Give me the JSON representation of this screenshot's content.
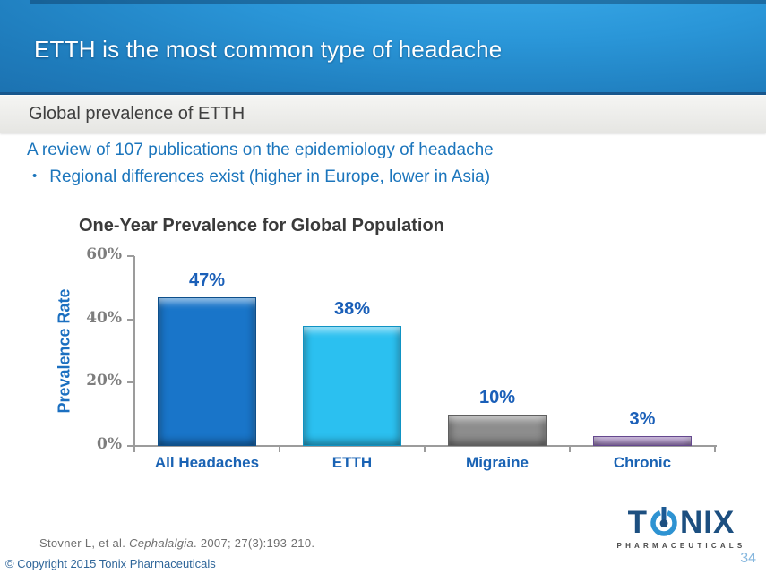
{
  "slide": {
    "title": "ETTH is the most common type of headache",
    "subtitle": "Global prevalence of ETTH",
    "intro_line": "A review of 107 publications on the epidemiology of headache",
    "bullet_glyph": "•",
    "bullet_text": "Regional differences exist (higher in Europe, lower in Asia)"
  },
  "chart_data": {
    "type": "bar",
    "title": "One-Year Prevalence for Global Population",
    "categories": [
      "All Headaches",
      "ETTH",
      "Migraine",
      "Chronic"
    ],
    "values": [
      47,
      38,
      10,
      3
    ],
    "value_labels": [
      "47%",
      "38%",
      "10%",
      "3%"
    ],
    "xlabel": "",
    "ylabel": "Prevalence Rate",
    "ylim": [
      0,
      60
    ],
    "yticks": [
      "0%",
      "20%",
      "40%",
      "60%"
    ],
    "grid": false,
    "legend": "none",
    "bar_colors": [
      "#1975c9",
      "#2bc0f0",
      "#8d8d8d",
      "#9a77bd"
    ],
    "bar_border_colors": [
      "#0d4f8b",
      "#0f93c4",
      "#5f5f5f",
      "#65488f"
    ]
  },
  "footer": {
    "citation_pre": "Stovner L, et al. ",
    "citation_italic": "Cephalalgia",
    "citation_post": ". 2007; 27(3):193-210.",
    "copyright": "© Copyright 2015 Tonix Pharmaceuticals",
    "page_number": "34",
    "logo": {
      "letter_t": "T",
      "letters_nix": "NIX",
      "tagline": "PHARMACEUTICALS",
      "power_icon": "power-button-icon"
    }
  },
  "colors": {
    "header_blue_light": "#2a96d8",
    "header_blue_dark": "#1c72b1",
    "body_text_blue": "#1b75bc",
    "chart_label_blue": "#1a5fb8",
    "tick_gray": "#7d7d7d",
    "logo_navy": "#1c4f80",
    "logo_ring_blue": "#2e93d2"
  }
}
